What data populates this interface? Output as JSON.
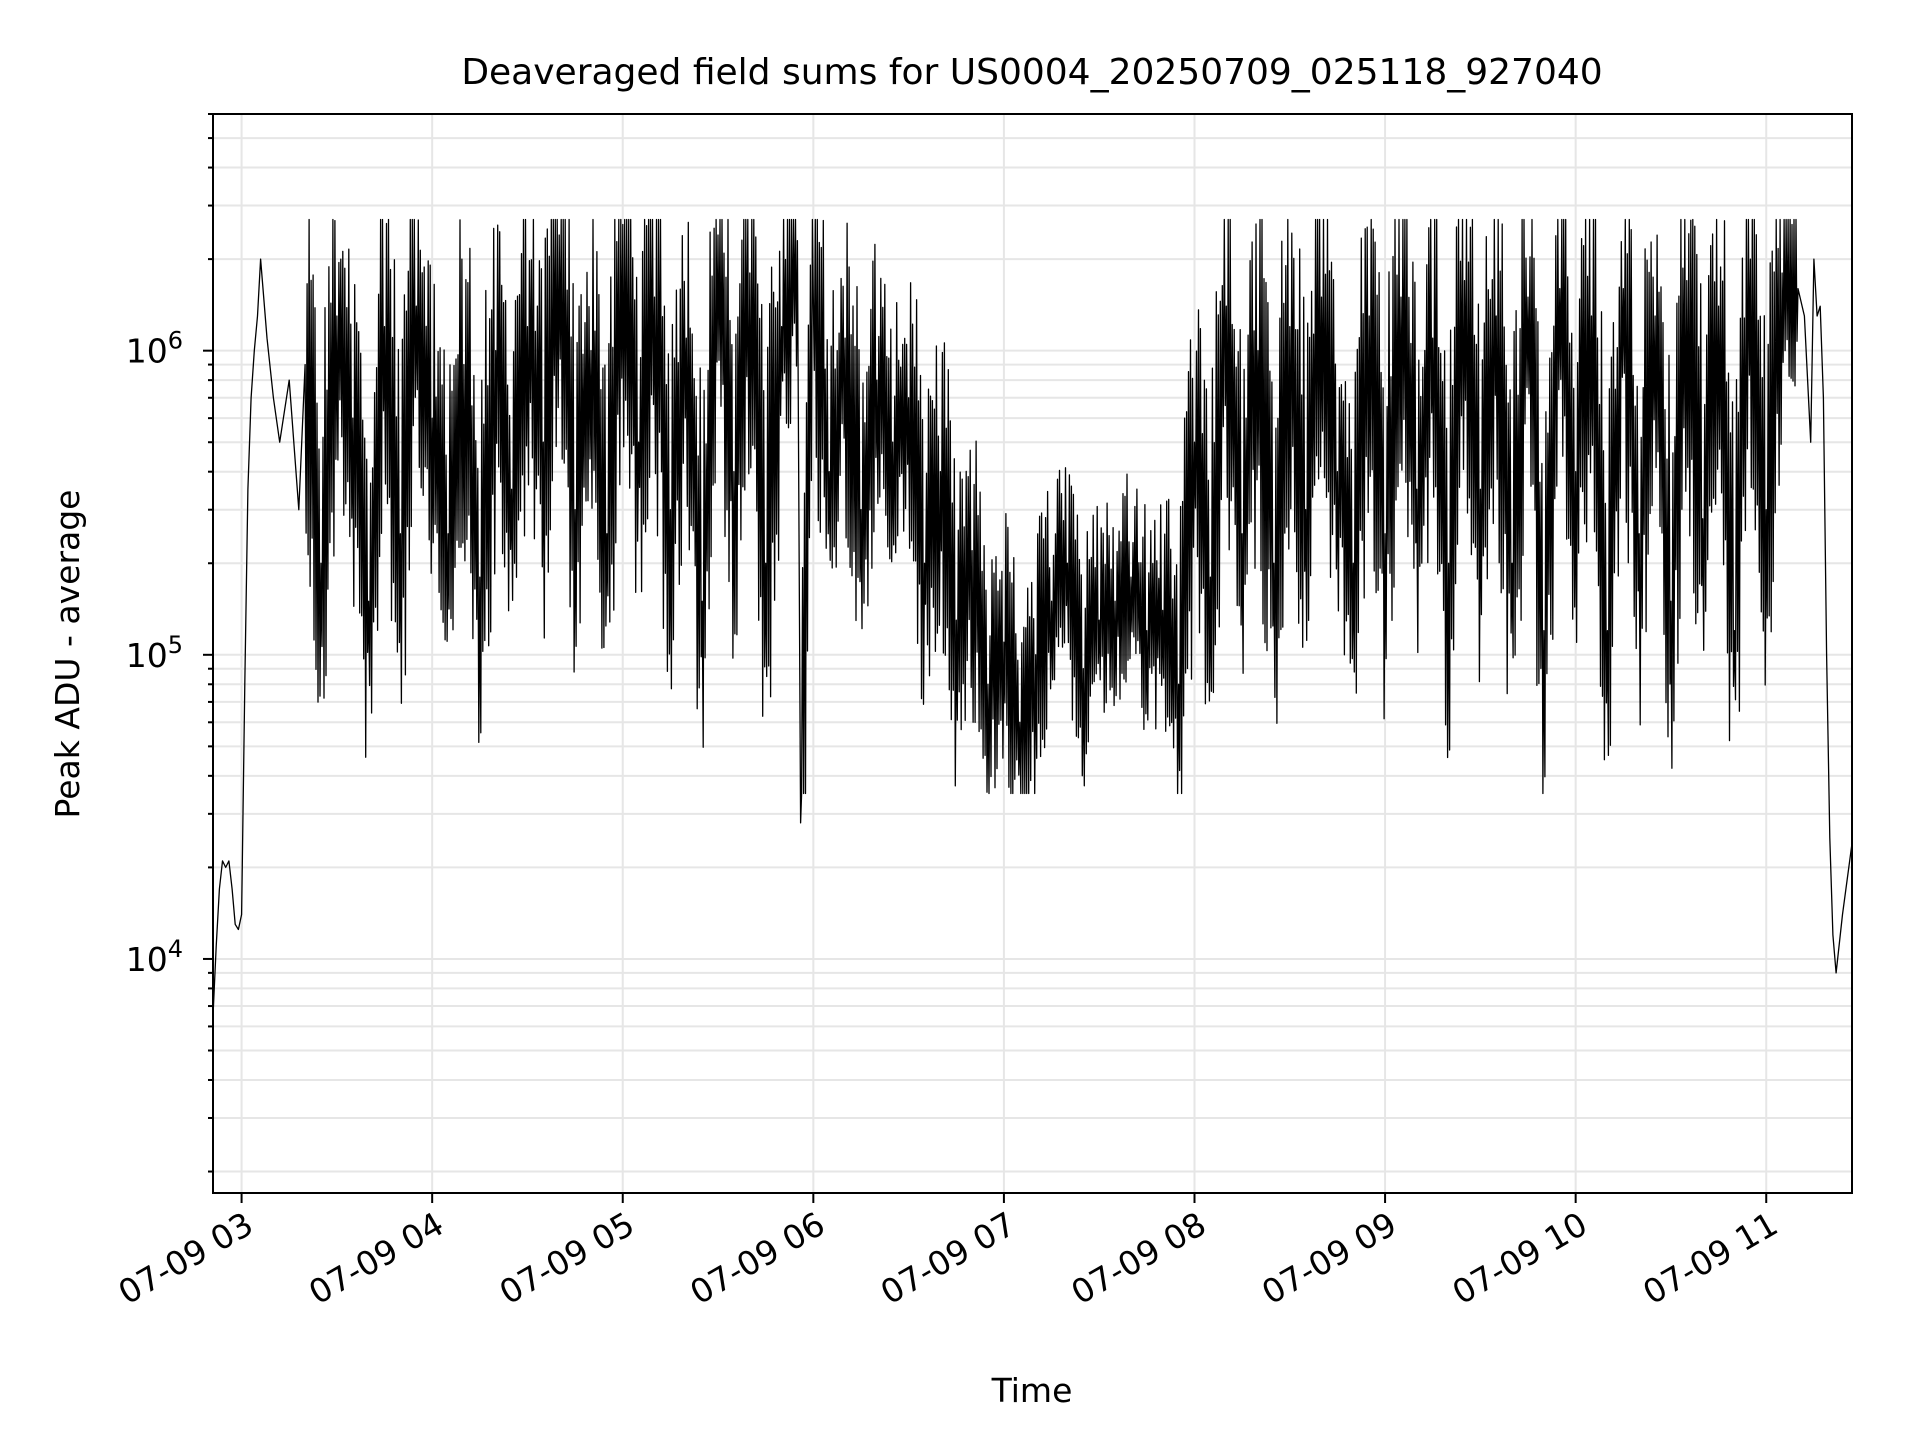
{
  "chart_data": {
    "type": "line",
    "title": "Deaveraged field sums for US0004_20250709_025118_927040",
    "xlabel": "Time",
    "ylabel": "Peak ADU - average",
    "y_scale": "log",
    "grid": true,
    "line_color": "#000000",
    "x_tick_labels": [
      "07-09 03",
      "07-09 04",
      "07-09 05",
      "07-09 06",
      "07-09 07",
      "07-09 08",
      "07-09 09",
      "07-09 10",
      "07-09 11"
    ],
    "y_tick_labels": [
      {
        "base": "10",
        "exp": "4"
      },
      {
        "base": "10",
        "exp": "5"
      },
      {
        "base": "10",
        "exp": "6"
      }
    ],
    "ylim": [
      1700,
      6000000
    ],
    "xlim": [
      "07-09 02:51",
      "07-09 11:27"
    ],
    "series": [
      {
        "x": [
          "02:51",
          "02:52",
          "02:53",
          "02:54",
          "02:55",
          "02:56",
          "02:57",
          "02:58",
          "02:59",
          "03:00",
          "03:01",
          "03:02",
          "03:03",
          "03:04",
          "03:05",
          "03:06",
          "03:08",
          "03:10",
          "03:12",
          "03:15",
          "03:18",
          "03:20",
          "03:25",
          "03:30",
          "03:35",
          "03:40",
          "03:45",
          "03:50",
          "03:55",
          "04:00",
          "04:05",
          "04:10",
          "04:15",
          "04:20",
          "04:25",
          "04:30",
          "04:35",
          "04:40",
          "04:45",
          "04:50",
          "04:55",
          "05:00",
          "05:05",
          "05:10",
          "05:15",
          "05:20",
          "05:25",
          "05:30",
          "05:35",
          "05:40",
          "05:45",
          "05:50",
          "05:55",
          "05:56",
          "06:00",
          "06:05",
          "06:10",
          "06:15",
          "06:20",
          "06:25",
          "06:30",
          "06:35",
          "06:40",
          "06:45",
          "06:50",
          "06:55",
          "07:00",
          "07:05",
          "07:10",
          "07:15",
          "07:20",
          "07:25",
          "07:30",
          "07:35",
          "07:40",
          "07:45",
          "07:50",
          "07:55",
          "08:00",
          "08:05",
          "08:10",
          "08:15",
          "08:20",
          "08:25",
          "08:30",
          "08:35",
          "08:40",
          "08:45",
          "08:50",
          "08:55",
          "09:00",
          "09:05",
          "09:10",
          "09:15",
          "09:20",
          "09:25",
          "09:30",
          "09:35",
          "09:40",
          "09:45",
          "09:50",
          "09:55",
          "10:00",
          "10:05",
          "10:10",
          "10:15",
          "10:20",
          "10:25",
          "10:30",
          "10:35",
          "10:40",
          "10:45",
          "10:50",
          "10:55",
          "11:00",
          "11:05",
          "11:10",
          "11:12",
          "11:14",
          "11:15",
          "11:16",
          "11:17",
          "11:18",
          "11:19",
          "11:20",
          "11:21",
          "11:22",
          "11:24",
          "11:26",
          "11:27"
        ],
        "y": [
          6500,
          11000,
          17000,
          21000,
          20000,
          21000,
          17000,
          13000,
          12500,
          14000,
          80000,
          350000,
          700000,
          1000000,
          1300000,
          2000000,
          1100000,
          700000,
          500000,
          800000,
          300000,
          900000,
          200000,
          1300000,
          600000,
          150000,
          1200000,
          250000,
          1400000,
          600000,
          250000,
          900000,
          180000,
          1000000,
          350000,
          1200000,
          500000,
          2400000,
          300000,
          1000000,
          250000,
          2600000,
          500000,
          1500000,
          300000,
          1100000,
          150000,
          2400000,
          400000,
          1800000,
          200000,
          1200000,
          2300000,
          28000,
          1500000,
          400000,
          1100000,
          300000,
          800000,
          500000,
          700000,
          200000,
          400000,
          130000,
          220000,
          80000,
          110000,
          60000,
          100000,
          150000,
          200000,
          90000,
          130000,
          150000,
          180000,
          120000,
          140000,
          80000,
          500000,
          180000,
          1400000,
          250000,
          1000000,
          200000,
          1200000,
          300000,
          1500000,
          400000,
          200000,
          1300000,
          250000,
          1500000,
          350000,
          1100000,
          200000,
          1700000,
          350000,
          1300000,
          200000,
          1500000,
          120000,
          1600000,
          400000,
          1300000,
          120000,
          1600000,
          250000,
          1300000,
          150000,
          1700000,
          280000,
          1400000,
          120000,
          2000000,
          300000,
          1800000,
          1600000,
          1300000,
          500000,
          2000000,
          1300000,
          1400000,
          700000,
          100000,
          25000,
          12000,
          9000,
          14000,
          20000,
          24000
        ]
      }
    ]
  }
}
